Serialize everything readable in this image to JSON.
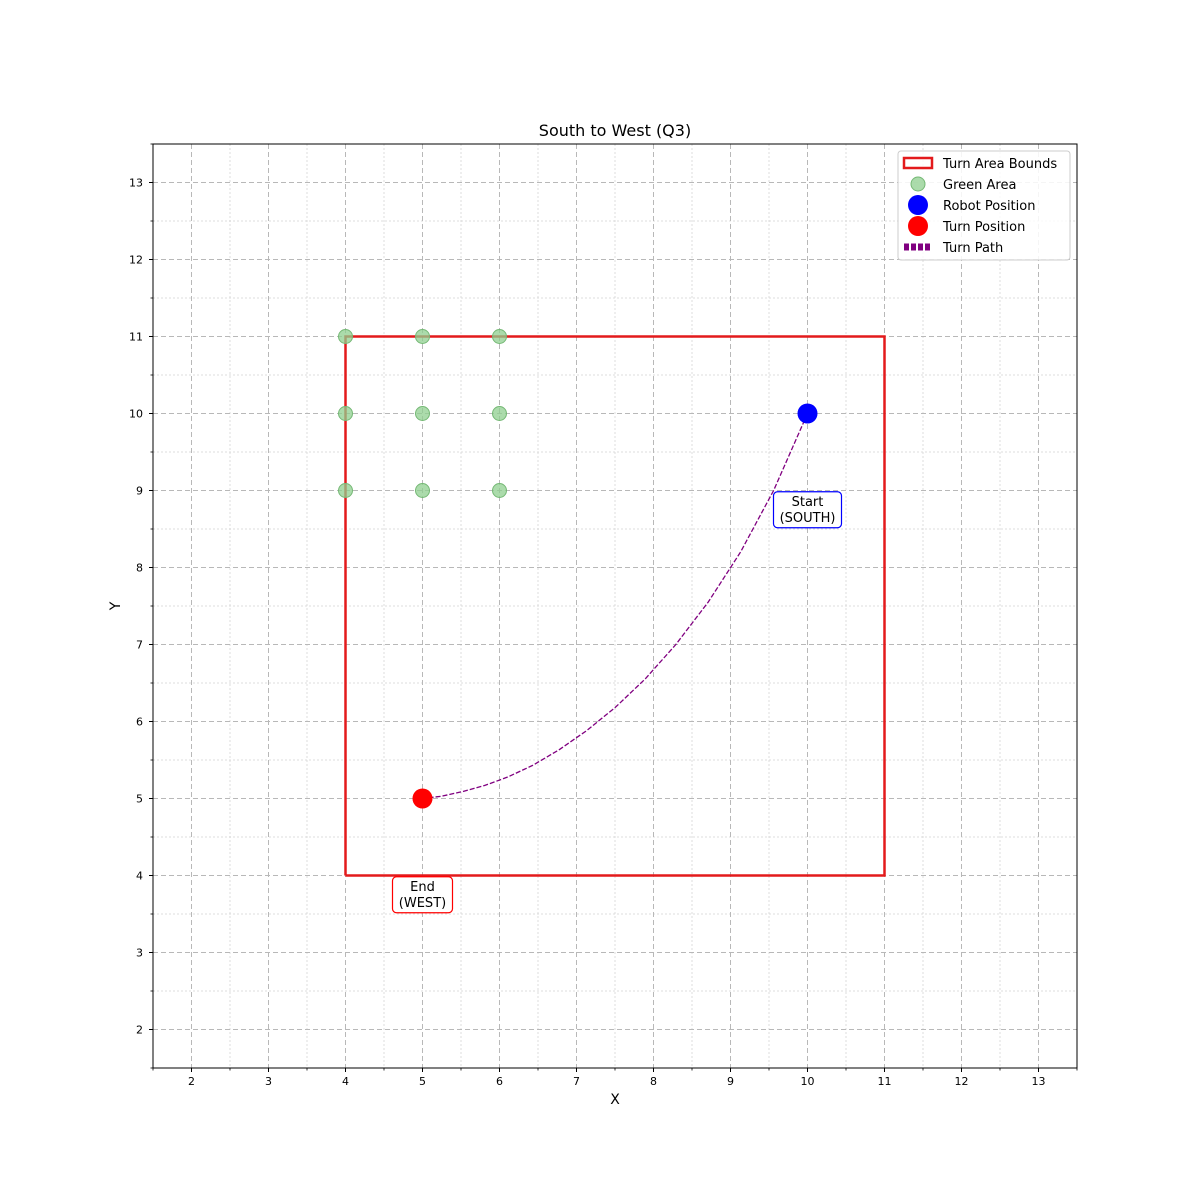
{
  "chart_data": {
    "type": "scatter",
    "title": "South to West (Q3)",
    "xlabel": "X",
    "ylabel": "Y",
    "xlim": [
      1.5,
      13.5
    ],
    "ylim": [
      1.5,
      13.5
    ],
    "xticks": [
      2,
      3,
      4,
      5,
      6,
      7,
      8,
      9,
      10,
      11,
      12,
      13
    ],
    "yticks": [
      2,
      3,
      4,
      5,
      6,
      7,
      8,
      9,
      10,
      11,
      12,
      13
    ],
    "grid": {
      "major": true,
      "minor": true,
      "style": "dashed"
    },
    "legend_position": "top-right",
    "turn_area_bounds": {
      "x_min": 4,
      "x_max": 11,
      "y_min": 4,
      "y_max": 11
    },
    "series": [
      {
        "name": "Turn Area Bounds",
        "kind": "rectangle",
        "color": "#e31a1c",
        "x": [
          4,
          11,
          11,
          4,
          4
        ],
        "y": [
          4,
          4,
          11,
          11,
          4
        ]
      },
      {
        "name": "Green Area",
        "kind": "scatter",
        "color": "#8fcf8f",
        "x": [
          4,
          5,
          6,
          4,
          5,
          6,
          4,
          5,
          6
        ],
        "y": [
          11,
          11,
          11,
          10,
          10,
          10,
          9,
          9,
          9
        ]
      },
      {
        "name": "Robot Position",
        "kind": "scatter",
        "color": "#0000ff",
        "x": [
          10
        ],
        "y": [
          10
        ]
      },
      {
        "name": "Turn Position",
        "kind": "scatter",
        "color": "#ff0000",
        "x": [
          5
        ],
        "y": [
          5
        ]
      },
      {
        "name": "Turn Path",
        "kind": "line",
        "color": "#800080",
        "style": "dashed",
        "x": [
          10.0,
          9.56,
          9.13,
          8.71,
          8.29,
          7.89,
          7.5,
          7.13,
          6.77,
          6.43,
          6.11,
          5.81,
          5.52,
          5.25,
          5.0
        ],
        "y": [
          10.0,
          9.0,
          8.2,
          7.55,
          7.0,
          6.55,
          6.18,
          5.88,
          5.63,
          5.43,
          5.28,
          5.17,
          5.09,
          5.03,
          5.0
        ]
      }
    ],
    "annotations": [
      {
        "lines": [
          "Start",
          "(SOUTH)"
        ],
        "x": 10,
        "y": 8.75,
        "border_color": "#0000ff"
      },
      {
        "lines": [
          "End",
          "(WEST)"
        ],
        "x": 5,
        "y": 3.75,
        "border_color": "#ff0000"
      }
    ]
  }
}
